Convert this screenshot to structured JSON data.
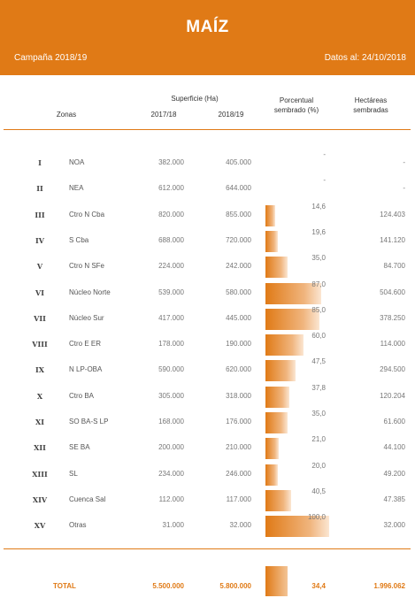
{
  "header": {
    "title": "MAÍZ",
    "campaign": "Campaña 2018/19",
    "date": "Datos al: 24/10/2018"
  },
  "columns": {
    "zonas": "Zonas",
    "superficie": "Superficie (Ha)",
    "y1": "2017/18",
    "y2": "2018/19",
    "pct_line1": "Porcentual",
    "pct_line2": "sembrado (%)",
    "ha_line1": "Hectáreas",
    "ha_line2": "sembradas"
  },
  "rows": [
    {
      "num": "I",
      "zone": "NOA",
      "s17": "382.000",
      "s18": "405.000",
      "pct": "-",
      "pct_value": 0,
      "ha": "-"
    },
    {
      "num": "II",
      "zone": "NEA",
      "s17": "612.000",
      "s18": "644.000",
      "pct": "-",
      "pct_value": 0,
      "ha": "-"
    },
    {
      "num": "III",
      "zone": "Ctro N Cba",
      "s17": "820.000",
      "s18": "855.000",
      "pct": "14,6",
      "pct_value": 14.6,
      "ha": "124.403"
    },
    {
      "num": "IV",
      "zone": "S Cba",
      "s17": "688.000",
      "s18": "720.000",
      "pct": "19,6",
      "pct_value": 19.6,
      "ha": "141.120"
    },
    {
      "num": "V",
      "zone": "Ctro N SFe",
      "s17": "224.000",
      "s18": "242.000",
      "pct": "35,0",
      "pct_value": 35.0,
      "ha": "84.700"
    },
    {
      "num": "VI",
      "zone": "Núcleo Norte",
      "s17": "539.000",
      "s18": "580.000",
      "pct": "87,0",
      "pct_value": 87.0,
      "ha": "504.600"
    },
    {
      "num": "VII",
      "zone": "Núcleo Sur",
      "s17": "417.000",
      "s18": "445.000",
      "pct": "85,0",
      "pct_value": 85.0,
      "ha": "378.250"
    },
    {
      "num": "VIII",
      "zone": "Ctro E ER",
      "s17": "178.000",
      "s18": "190.000",
      "pct": "60,0",
      "pct_value": 60.0,
      "ha": "114.000"
    },
    {
      "num": "IX",
      "zone": "N LP-OBA",
      "s17": "590.000",
      "s18": "620.000",
      "pct": "47,5",
      "pct_value": 47.5,
      "ha": "294.500"
    },
    {
      "num": "X",
      "zone": "Ctro BA",
      "s17": "305.000",
      "s18": "318.000",
      "pct": "37,8",
      "pct_value": 37.8,
      "ha": "120.204"
    },
    {
      "num": "XI",
      "zone": "SO BA-S LP",
      "s17": "168.000",
      "s18": "176.000",
      "pct": "35,0",
      "pct_value": 35.0,
      "ha": "61.600"
    },
    {
      "num": "XII",
      "zone": "SE BA",
      "s17": "200.000",
      "s18": "210.000",
      "pct": "21,0",
      "pct_value": 21.0,
      "ha": "44.100"
    },
    {
      "num": "XIII",
      "zone": "SL",
      "s17": "234.000",
      "s18": "246.000",
      "pct": "20,0",
      "pct_value": 20.0,
      "ha": "49.200"
    },
    {
      "num": "XIV",
      "zone": "Cuenca Sal",
      "s17": "112.000",
      "s18": "117.000",
      "pct": "40,5",
      "pct_value": 40.5,
      "ha": "47.385"
    },
    {
      "num": "XV",
      "zone": "Otras",
      "s17": "31.000",
      "s18": "32.000",
      "pct": "100,0",
      "pct_value": 100.0,
      "ha": "32.000"
    }
  ],
  "total": {
    "label": "TOTAL",
    "s17": "5.500.000",
    "s18": "5.800.000",
    "pct": "34,4",
    "pct_value": 34.4,
    "ha": "1.996.062"
  },
  "colors": {
    "accent": "#e07a16"
  }
}
